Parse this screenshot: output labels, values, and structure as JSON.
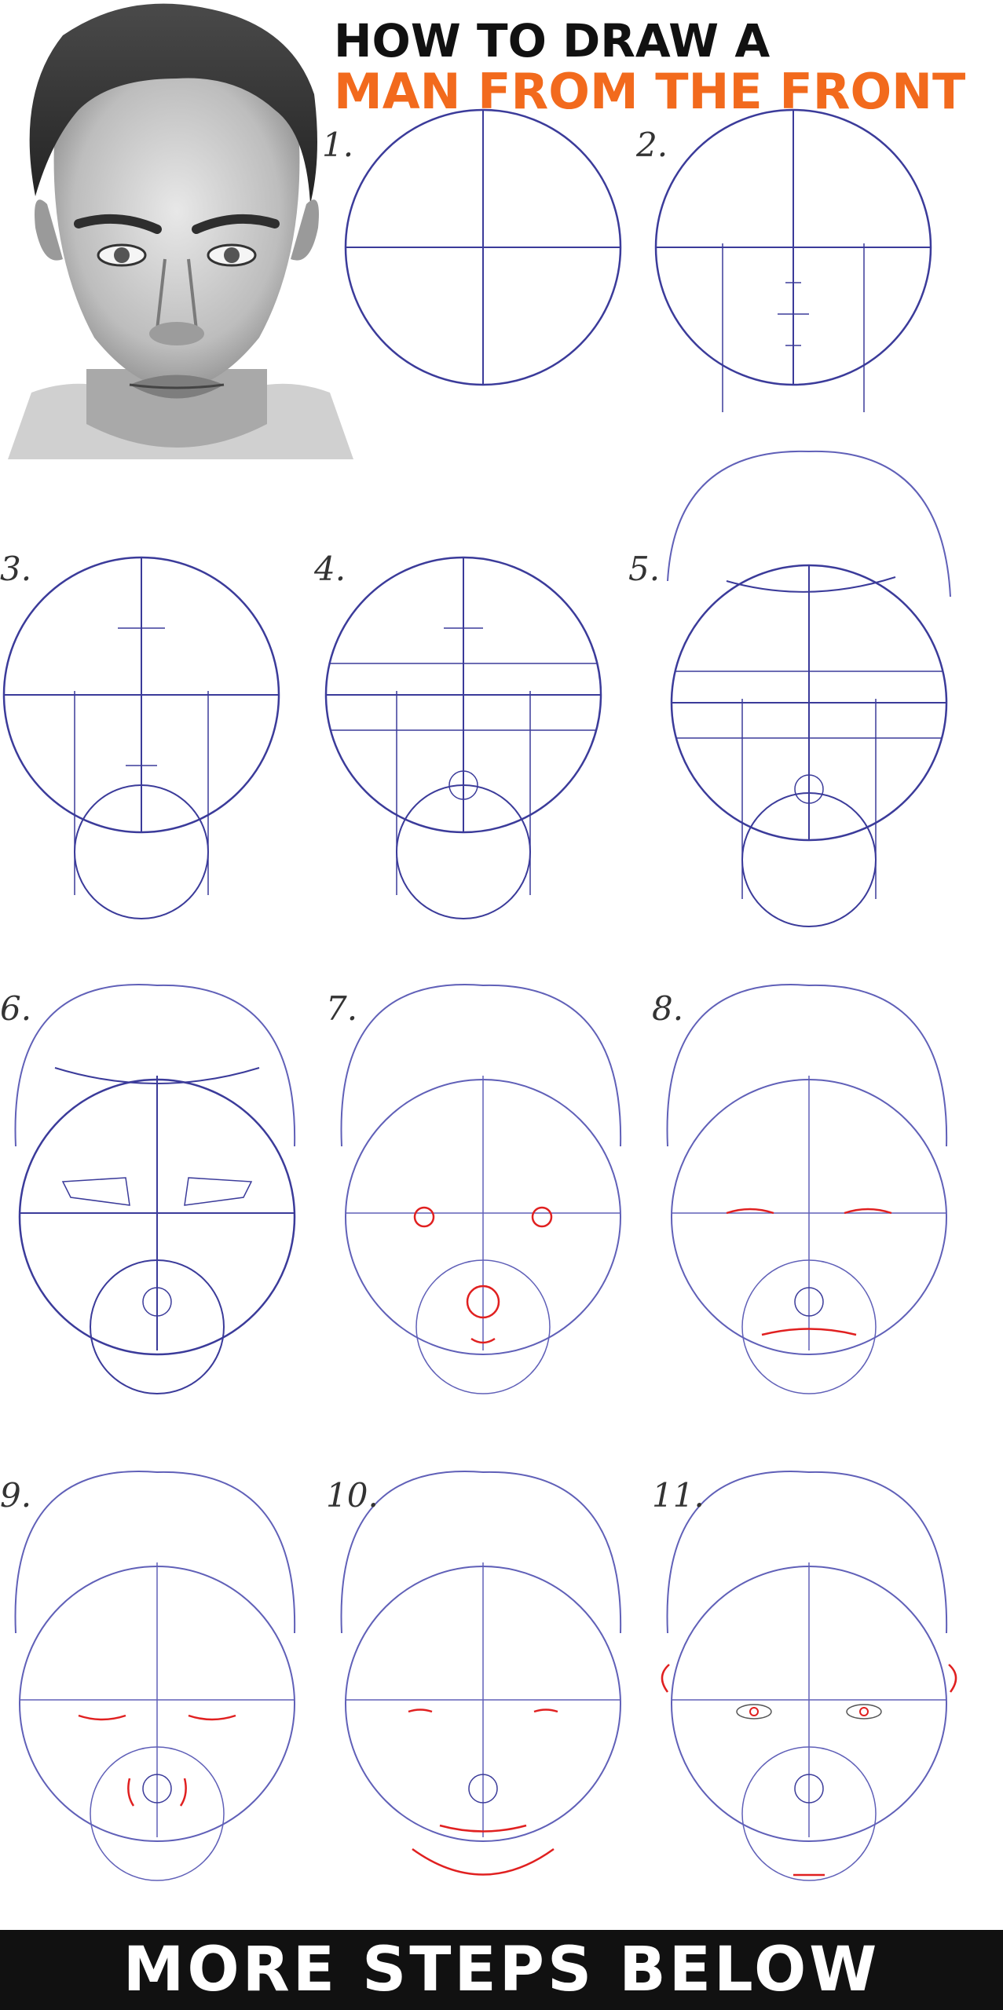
{
  "title": {
    "line1": "HOW TO DRAW A",
    "line2": "MAN FROM THE FRONT"
  },
  "colors": {
    "title_dark": "#111111",
    "title_accent": "#f26a1d",
    "guide": "#3b3b9a",
    "new_line": "#e02020",
    "footer_bg": "#111111"
  },
  "steps": [
    {
      "label": "1."
    },
    {
      "label": "2."
    },
    {
      "label": "3."
    },
    {
      "label": "4."
    },
    {
      "label": "5."
    },
    {
      "label": "6."
    },
    {
      "label": "7."
    },
    {
      "label": "8."
    },
    {
      "label": "9."
    },
    {
      "label": "10."
    },
    {
      "label": "11."
    }
  ],
  "footer": {
    "text": "MORE STEPS BELOW"
  }
}
